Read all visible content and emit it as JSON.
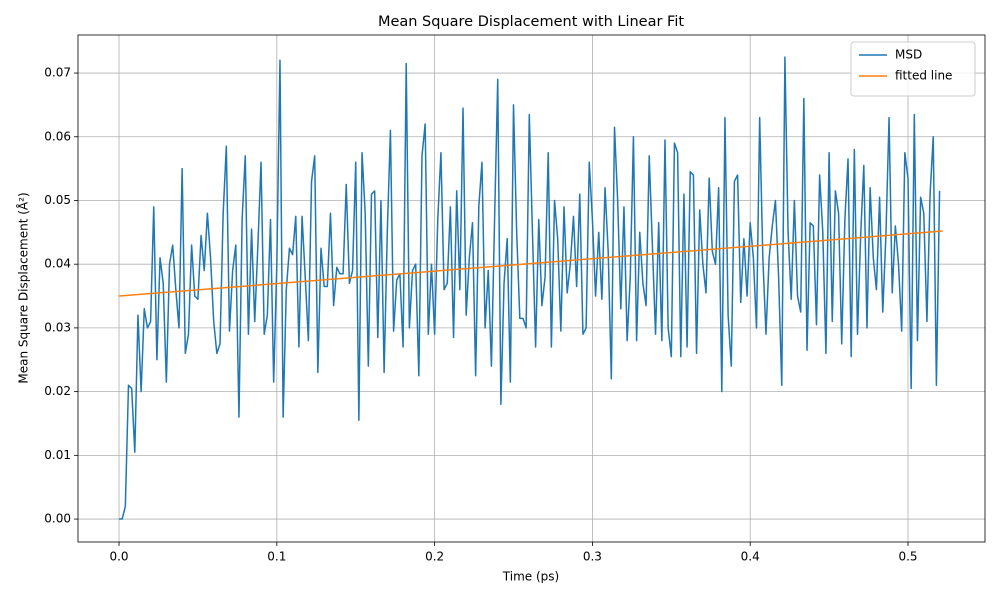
{
  "chart_data": {
    "type": "line",
    "title": "Mean Square Displacement with Linear Fit",
    "xlabel": "Time (ps)",
    "ylabel": "Mean Square Displacement (Å²)",
    "xlim": [
      -0.026,
      0.5488
    ],
    "ylim": [
      -0.0036,
      0.07597
    ],
    "xticks": [
      {
        "value": 0,
        "label": "0.0"
      },
      {
        "value": 0.1,
        "label": "0.1"
      },
      {
        "value": 0.2,
        "label": "0.2"
      },
      {
        "value": 0.3,
        "label": "0.3"
      },
      {
        "value": 0.4,
        "label": "0.4"
      },
      {
        "value": 0.5,
        "label": "0.5"
      }
    ],
    "yticks": [
      {
        "value": 0,
        "label": "0.00"
      },
      {
        "value": 0.01,
        "label": "0.01"
      },
      {
        "value": 0.02,
        "label": "0.02"
      },
      {
        "value": 0.03,
        "label": "0.03"
      },
      {
        "value": 0.04,
        "label": "0.04"
      },
      {
        "value": 0.05,
        "label": "0.05"
      },
      {
        "value": 0.06,
        "label": "0.06"
      },
      {
        "value": 0.07,
        "label": "0.07"
      }
    ],
    "grid": true,
    "legend": "upper right",
    "series": [
      {
        "name": "MSD",
        "color": "#1f77b4",
        "x": [
          0,
          0.002,
          0.004,
          0.006,
          0.008,
          0.01,
          0.012,
          0.014,
          0.016,
          0.018,
          0.02,
          0.022,
          0.024,
          0.026,
          0.028,
          0.03,
          0.032,
          0.034,
          0.036,
          0.038,
          0.04,
          0.042,
          0.044,
          0.046,
          0.048,
          0.05,
          0.052,
          0.054,
          0.056,
          0.058,
          0.06,
          0.062,
          0.064,
          0.066,
          0.068,
          0.07,
          0.072,
          0.074,
          0.076,
          0.078,
          0.08,
          0.082,
          0.084,
          0.086,
          0.088,
          0.09,
          0.092,
          0.094,
          0.096,
          0.098,
          0.1,
          0.102,
          0.104,
          0.106,
          0.108,
          0.11,
          0.112,
          0.114,
          0.116,
          0.118,
          0.12,
          0.122,
          0.124,
          0.126,
          0.128,
          0.13,
          0.132,
          0.134,
          0.136,
          0.138,
          0.14,
          0.142,
          0.144,
          0.146,
          0.148,
          0.15,
          0.152,
          0.154,
          0.156,
          0.158,
          0.16,
          0.162,
          0.164,
          0.166,
          0.168,
          0.17,
          0.172,
          0.174,
          0.176,
          0.178,
          0.18,
          0.182,
          0.184,
          0.186,
          0.188,
          0.19,
          0.192,
          0.194,
          0.196,
          0.198,
          0.2,
          0.202,
          0.204,
          0.206,
          0.208,
          0.21,
          0.212,
          0.214,
          0.216,
          0.218,
          0.22,
          0.222,
          0.224,
          0.226,
          0.228,
          0.23,
          0.232,
          0.234,
          0.236,
          0.238,
          0.24,
          0.242,
          0.244,
          0.246,
          0.248,
          0.25,
          0.252,
          0.254,
          0.256,
          0.258,
          0.26,
          0.262,
          0.264,
          0.266,
          0.268,
          0.27,
          0.272,
          0.274,
          0.276,
          0.278,
          0.28,
          0.282,
          0.284,
          0.286,
          0.288,
          0.29,
          0.292,
          0.294,
          0.296,
          0.298,
          0.3,
          0.302,
          0.304,
          0.306,
          0.308,
          0.31,
          0.312,
          0.314,
          0.316,
          0.318,
          0.32,
          0.322,
          0.324,
          0.326,
          0.328,
          0.33,
          0.332,
          0.334,
          0.336,
          0.338,
          0.34,
          0.342,
          0.344,
          0.346,
          0.348,
          0.35,
          0.352,
          0.354,
          0.356,
          0.358,
          0.36,
          0.362,
          0.364,
          0.366,
          0.368,
          0.37,
          0.372,
          0.374,
          0.376,
          0.378,
          0.38,
          0.382,
          0.384,
          0.386,
          0.388,
          0.39,
          0.392,
          0.394,
          0.396,
          0.398,
          0.4,
          0.402,
          0.404,
          0.406,
          0.408,
          0.41,
          0.412,
          0.414,
          0.416,
          0.418,
          0.42,
          0.422,
          0.424,
          0.426,
          0.428,
          0.43,
          0.432,
          0.434,
          0.436,
          0.438,
          0.44,
          0.442,
          0.444,
          0.446,
          0.448,
          0.45,
          0.452,
          0.454,
          0.456,
          0.458,
          0.46,
          0.462,
          0.464,
          0.466,
          0.468,
          0.47,
          0.472,
          0.474,
          0.476,
          0.478,
          0.48,
          0.482,
          0.484,
          0.486,
          0.488,
          0.49,
          0.492,
          0.494,
          0.496,
          0.498,
          0.5,
          0.502,
          0.504,
          0.506,
          0.508,
          0.51,
          0.512,
          0.514,
          0.516,
          0.518,
          0.52
        ],
        "values": [
          0,
          0,
          0.002,
          0.021,
          0.0205,
          0.0105,
          0.032,
          0.02,
          0.033,
          0.03,
          0.031,
          0.049,
          0.025,
          0.041,
          0.037,
          0.0215,
          0.04,
          0.043,
          0.036,
          0.03,
          0.055,
          0.026,
          0.029,
          0.043,
          0.035,
          0.0345,
          0.0445,
          0.039,
          0.048,
          0.041,
          0.031,
          0.026,
          0.0275,
          0.048,
          0.0585,
          0.0295,
          0.039,
          0.043,
          0.016,
          0.047,
          0.057,
          0.029,
          0.0455,
          0.031,
          0.043,
          0.056,
          0.029,
          0.032,
          0.047,
          0.0215,
          0.04,
          0.072,
          0.016,
          0.036,
          0.0425,
          0.0415,
          0.0475,
          0.027,
          0.0475,
          0.038,
          0.028,
          0.053,
          0.057,
          0.023,
          0.0425,
          0.0365,
          0.0365,
          0.048,
          0.0335,
          0.0395,
          0.0385,
          0.0385,
          0.0525,
          0.037,
          0.039,
          0.056,
          0.0155,
          0.0575,
          0.048,
          0.024,
          0.051,
          0.0515,
          0.0285,
          0.05,
          0.023,
          0.045,
          0.061,
          0.0295,
          0.0375,
          0.0385,
          0.027,
          0.0715,
          0.03,
          0.039,
          0.04,
          0.0225,
          0.057,
          0.062,
          0.029,
          0.04,
          0.029,
          0.047,
          0.0575,
          0.036,
          0.037,
          0.049,
          0.0285,
          0.0515,
          0.036,
          0.0645,
          0.032,
          0.041,
          0.0465,
          0.0225,
          0.049,
          0.056,
          0.03,
          0.039,
          0.024,
          0.047,
          0.069,
          0.018,
          0.037,
          0.044,
          0.0215,
          0.065,
          0.045,
          0.0315,
          0.0315,
          0.03,
          0.0635,
          0.045,
          0.027,
          0.047,
          0.0335,
          0.038,
          0.0575,
          0.027,
          0.05,
          0.044,
          0.0295,
          0.049,
          0.0355,
          0.04,
          0.0475,
          0.0365,
          0.051,
          0.029,
          0.03,
          0.056,
          0.047,
          0.035,
          0.045,
          0.0345,
          0.052,
          0.042,
          0.022,
          0.0615,
          0.05,
          0.033,
          0.049,
          0.028,
          0.038,
          0.06,
          0.028,
          0.045,
          0.037,
          0.0335,
          0.057,
          0.043,
          0.029,
          0.0465,
          0.028,
          0.0595,
          0.03,
          0.0255,
          0.059,
          0.0575,
          0.0255,
          0.051,
          0.027,
          0.0545,
          0.054,
          0.026,
          0.0485,
          0.04,
          0.0355,
          0.0535,
          0.042,
          0.04,
          0.052,
          0.02,
          0.063,
          0.032,
          0.024,
          0.053,
          0.054,
          0.034,
          0.044,
          0.035,
          0.0465,
          0.041,
          0.03,
          0.063,
          0.041,
          0.029,
          0.041,
          0.046,
          0.05,
          0.038,
          0.021,
          0.0725,
          0.045,
          0.0345,
          0.05,
          0.035,
          0.0325,
          0.066,
          0.0265,
          0.0465,
          0.046,
          0.0305,
          0.054,
          0.045,
          0.026,
          0.0575,
          0.031,
          0.0515,
          0.048,
          0.0275,
          0.047,
          0.0565,
          0.0255,
          0.058,
          0.029,
          0.0445,
          0.0555,
          0.03,
          0.052,
          0.041,
          0.036,
          0.0505,
          0.0325,
          0.0445,
          0.063,
          0.0355,
          0.046,
          0.04,
          0.0295,
          0.0575,
          0.0535,
          0.0205,
          0.0635,
          0.028,
          0.0505,
          0.048,
          0.031,
          0.051,
          0.06,
          0.021,
          0.0515
        ]
      },
      {
        "name": "fitted line",
        "color": "#ff7f0e",
        "x": [
          0,
          0.522
        ],
        "values": [
          0.035,
          0.0452
        ]
      }
    ]
  }
}
